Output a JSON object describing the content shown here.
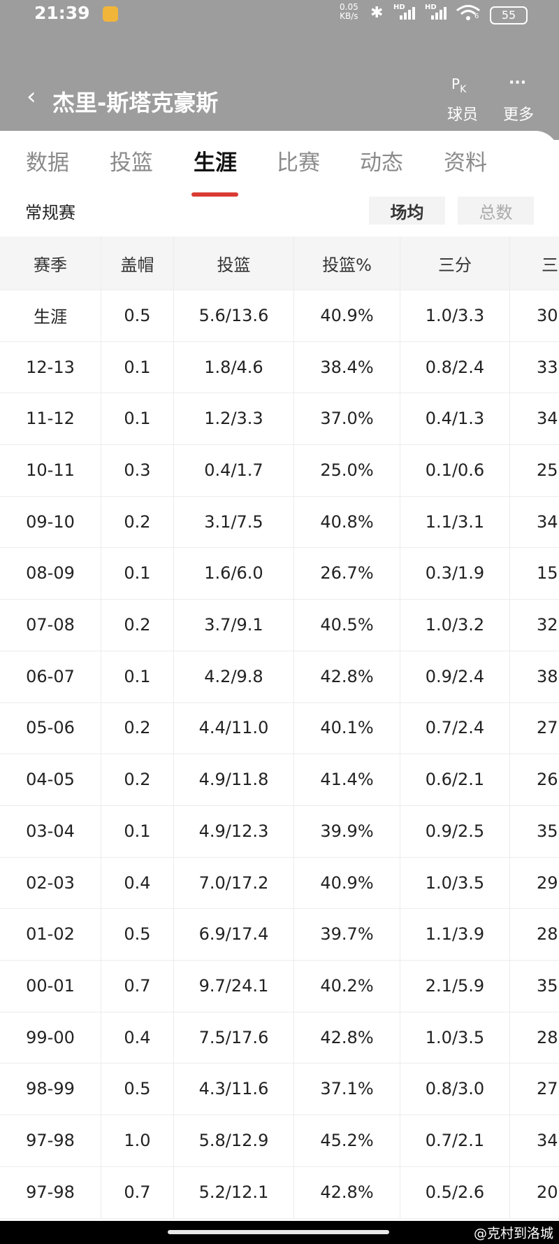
{
  "status_bar": {
    "time": "21:39",
    "net_speed": "0.05",
    "net_speed_unit": "KB/s",
    "signal_labels": [
      "HD",
      "HD"
    ],
    "wifi_label": "6",
    "battery": "55"
  },
  "header": {
    "title": "杰里-斯塔克豪斯",
    "actions": [
      {
        "icon": [
          "P",
          "K"
        ],
        "label": "球员"
      },
      {
        "icon": "···",
        "label": "更多"
      }
    ]
  },
  "tabs": {
    "items": [
      "数据",
      "投篮",
      "生涯",
      "比赛",
      "动态",
      "资料"
    ],
    "active": 2
  },
  "section": {
    "title": "常规赛",
    "toggles": [
      "场均",
      "总数"
    ],
    "active_toggle": 0
  },
  "table": {
    "headers": [
      "赛季",
      "盖帽",
      "投篮",
      "投篮%",
      "三分",
      "三"
    ],
    "rows": [
      [
        "生涯",
        "0.5",
        "5.6/13.6",
        "40.9%",
        "1.0/3.3",
        "30"
      ],
      [
        "12-13",
        "0.1",
        "1.8/4.6",
        "38.4%",
        "0.8/2.4",
        "33"
      ],
      [
        "11-12",
        "0.1",
        "1.2/3.3",
        "37.0%",
        "0.4/1.3",
        "34"
      ],
      [
        "10-11",
        "0.3",
        "0.4/1.7",
        "25.0%",
        "0.1/0.6",
        "25"
      ],
      [
        "09-10",
        "0.2",
        "3.1/7.5",
        "40.8%",
        "1.1/3.1",
        "34"
      ],
      [
        "08-09",
        "0.1",
        "1.6/6.0",
        "26.7%",
        "0.3/1.9",
        "15."
      ],
      [
        "07-08",
        "0.2",
        "3.7/9.1",
        "40.5%",
        "1.0/3.2",
        "32"
      ],
      [
        "06-07",
        "0.1",
        "4.2/9.8",
        "42.8%",
        "0.9/2.4",
        "38"
      ],
      [
        "05-06",
        "0.2",
        "4.4/11.0",
        "40.1%",
        "0.7/2.4",
        "27"
      ],
      [
        "04-05",
        "0.2",
        "4.9/11.8",
        "41.4%",
        "0.6/2.1",
        "26"
      ],
      [
        "03-04",
        "0.1",
        "4.9/12.3",
        "39.9%",
        "0.9/2.5",
        "35"
      ],
      [
        "02-03",
        "0.4",
        "7.0/17.2",
        "40.9%",
        "1.0/3.5",
        "29"
      ],
      [
        "01-02",
        "0.5",
        "6.9/17.4",
        "39.7%",
        "1.1/3.9",
        "28"
      ],
      [
        "00-01",
        "0.7",
        "9.7/24.1",
        "40.2%",
        "2.1/5.9",
        "35"
      ],
      [
        "99-00",
        "0.4",
        "7.5/17.6",
        "42.8%",
        "1.0/3.5",
        "28"
      ],
      [
        "98-99",
        "0.5",
        "4.3/11.6",
        "37.1%",
        "0.8/3.0",
        "27"
      ],
      [
        "97-98",
        "1.0",
        "5.8/12.9",
        "45.2%",
        "0.7/2.1",
        "34"
      ],
      [
        "97-98",
        "0.7",
        "5.2/12.1",
        "42.8%",
        "0.5/2.6",
        "20"
      ]
    ]
  },
  "watermark": "@克村到洛城"
}
